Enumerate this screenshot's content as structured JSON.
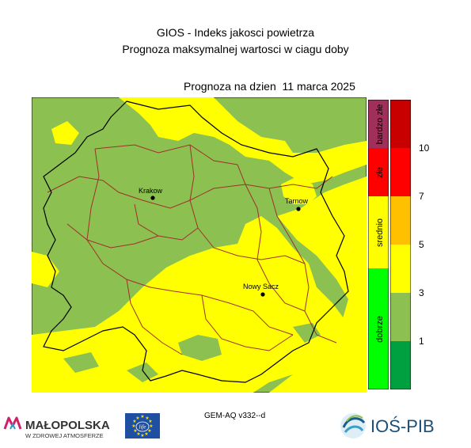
{
  "header": {
    "title_line1": "GIOS - Indeks jakosci powietrza",
    "title_line2": "Prognoza maksymalnej wartosci w ciagu doby",
    "forecast_date": "Prognoza na dzien  11 marca 2025"
  },
  "map": {
    "cities": [
      {
        "name": "Krakow"
      },
      {
        "name": "Tarnow"
      },
      {
        "name": "Nowy Sacz"
      }
    ],
    "colors": {
      "background": "#8cc050",
      "overlay": "#ffff00",
      "voivodeship_border": "#000000",
      "county_border": "#a0302a"
    }
  },
  "legend": {
    "classes": [
      {
        "label": "bardzo złe",
        "color": "#a0305a"
      },
      {
        "label": "złe",
        "color": "#ff0000"
      },
      {
        "label": "srednio",
        "color": "#ffff00"
      },
      {
        "label": "dobrze",
        "color": "#00ff00"
      }
    ],
    "scale_colors": [
      "#c80000",
      "#ff0000",
      "#ffc000",
      "#ffff00",
      "#8cc050",
      "#00a040"
    ],
    "ticks": [
      "10",
      "7",
      "5",
      "3",
      "1"
    ]
  },
  "footer": {
    "model_version": "GEM-AQ v332--d",
    "malopolska_name": "MAŁOPOLSKA",
    "malopolska_tagline": "W ZDROWEJ ATMOSFERZE",
    "eu_logo_text": "life",
    "institute_name": "IOŚ-PIB"
  }
}
